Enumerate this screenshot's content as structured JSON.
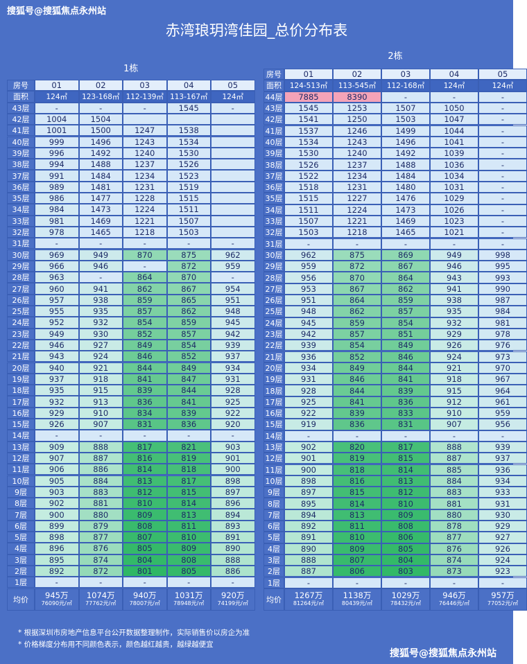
{
  "watermark_top": "搜狐号@搜狐焦点永州站",
  "title": "赤湾琅玥湾佳园_总价分布表",
  "buildings": [
    {
      "name": "1栋",
      "room_label": "房号",
      "units": [
        "01",
        "02",
        "03",
        "04",
        "05"
      ],
      "area_label": "面积",
      "areas": [
        "124㎡",
        "123-168㎡",
        "112-139㎡",
        "113-167㎡",
        "124㎡"
      ],
      "floors": [
        {
          "label": "43层",
          "prices": [
            "-",
            "-",
            "-",
            1545,
            "-"
          ]
        },
        {
          "label": "42层",
          "prices": [
            1004,
            1504,
            null,
            null,
            null
          ]
        },
        {
          "label": "41层",
          "prices": [
            1001,
            1500,
            1247,
            1538,
            null
          ]
        },
        {
          "label": "40层",
          "prices": [
            999,
            1496,
            1243,
            1534,
            null
          ]
        },
        {
          "label": "39层",
          "prices": [
            996,
            1492,
            1240,
            1530,
            null
          ]
        },
        {
          "label": "38层",
          "prices": [
            994,
            1488,
            1237,
            1526,
            null
          ]
        },
        {
          "label": "37层",
          "prices": [
            991,
            1484,
            1234,
            1523,
            null
          ]
        },
        {
          "label": "36层",
          "prices": [
            989,
            1481,
            1231,
            1519,
            null
          ]
        },
        {
          "label": "35层",
          "prices": [
            986,
            1477,
            1228,
            1515,
            null
          ]
        },
        {
          "label": "34层",
          "prices": [
            984,
            1473,
            1224,
            1511,
            null
          ]
        },
        {
          "label": "33层",
          "prices": [
            981,
            1469,
            1221,
            1507,
            null
          ]
        },
        {
          "label": "32层",
          "prices": [
            978,
            1465,
            1218,
            1503,
            null
          ]
        },
        {
          "label": "31层",
          "prices": [
            "-",
            "-",
            "-",
            "-",
            "-"
          ]
        },
        {
          "label": "30层",
          "prices": [
            969,
            949,
            870,
            875,
            962
          ]
        },
        {
          "label": "29层",
          "prices": [
            966,
            946,
            "-",
            872,
            959
          ]
        },
        {
          "label": "28层",
          "prices": [
            963,
            "-",
            864,
            870,
            "-"
          ]
        },
        {
          "label": "27层",
          "prices": [
            960,
            941,
            862,
            867,
            954
          ]
        },
        {
          "label": "26层",
          "prices": [
            957,
            938,
            859,
            865,
            951
          ]
        },
        {
          "label": "25层",
          "prices": [
            955,
            935,
            857,
            862,
            948
          ]
        },
        {
          "label": "24层",
          "prices": [
            952,
            932,
            854,
            859,
            945
          ]
        },
        {
          "label": "23层",
          "prices": [
            949,
            930,
            852,
            857,
            942
          ]
        },
        {
          "label": "22层",
          "prices": [
            946,
            927,
            849,
            854,
            939
          ]
        },
        {
          "label": "21层",
          "prices": [
            943,
            924,
            846,
            852,
            937
          ]
        },
        {
          "label": "20层",
          "prices": [
            940,
            921,
            844,
            849,
            934
          ]
        },
        {
          "label": "19层",
          "prices": [
            937,
            918,
            841,
            847,
            931
          ]
        },
        {
          "label": "18层",
          "prices": [
            935,
            915,
            839,
            844,
            928
          ]
        },
        {
          "label": "17层",
          "prices": [
            932,
            913,
            836,
            841,
            925
          ]
        },
        {
          "label": "16层",
          "prices": [
            929,
            910,
            834,
            839,
            922
          ]
        },
        {
          "label": "15层",
          "prices": [
            926,
            907,
            831,
            836,
            920
          ]
        },
        {
          "label": "14层",
          "prices": [
            "-",
            "-",
            "-",
            "-",
            "-"
          ]
        },
        {
          "label": "13层",
          "prices": [
            909,
            888,
            817,
            821,
            903
          ]
        },
        {
          "label": "12层",
          "prices": [
            907,
            887,
            816,
            819,
            901
          ]
        },
        {
          "label": "11层",
          "prices": [
            906,
            886,
            814,
            818,
            900
          ]
        },
        {
          "label": "10层",
          "prices": [
            905,
            884,
            813,
            817,
            898
          ]
        },
        {
          "label": "9层",
          "prices": [
            903,
            883,
            812,
            815,
            897
          ]
        },
        {
          "label": "8层",
          "prices": [
            902,
            881,
            810,
            814,
            896
          ]
        },
        {
          "label": "7层",
          "prices": [
            900,
            880,
            809,
            813,
            894
          ]
        },
        {
          "label": "6层",
          "prices": [
            899,
            879,
            808,
            811,
            893
          ]
        },
        {
          "label": "5层",
          "prices": [
            898,
            877,
            807,
            810,
            891
          ]
        },
        {
          "label": "4层",
          "prices": [
            896,
            876,
            805,
            809,
            890
          ]
        },
        {
          "label": "3层",
          "prices": [
            895,
            874,
            804,
            808,
            888
          ]
        },
        {
          "label": "2层",
          "prices": [
            892,
            872,
            801,
            805,
            886
          ]
        },
        {
          "label": "1层",
          "prices": [
            "-",
            "-",
            "-",
            "-",
            "-"
          ]
        }
      ],
      "average_label": "均价",
      "average_totals": [
        "945万",
        "1074万",
        "940万",
        "1031万",
        "920万"
      ],
      "average_unit_prices": [
        "76090元/㎡",
        "77762元/㎡",
        "78007元/㎡",
        "78948元/㎡",
        "74199元/㎡"
      ]
    },
    {
      "name": "2栋",
      "room_label": "房号",
      "units": [
        "01",
        "02",
        "03",
        "04",
        "05"
      ],
      "area_label": "面积",
      "areas": [
        "124-513㎡",
        "113-545㎡",
        "112-168㎡",
        "124㎡",
        "124㎡"
      ],
      "floors": [
        {
          "label": "44层",
          "prices": [
            7885,
            8390,
            "-",
            "-",
            "-"
          ]
        },
        {
          "label": "43层",
          "prices": [
            1545,
            1253,
            1507,
            1050,
            "-"
          ]
        },
        {
          "label": "42层",
          "prices": [
            1541,
            1250,
            1503,
            1047,
            "-"
          ]
        },
        {
          "label": "41层",
          "prices": [
            1537,
            1246,
            1499,
            1044,
            "-"
          ]
        },
        {
          "label": "40层",
          "prices": [
            1534,
            1243,
            1496,
            1041,
            "-"
          ]
        },
        {
          "label": "39层",
          "prices": [
            1530,
            1240,
            1492,
            1039,
            "-"
          ]
        },
        {
          "label": "38层",
          "prices": [
            1526,
            1237,
            1488,
            1036,
            "-"
          ]
        },
        {
          "label": "37层",
          "prices": [
            1522,
            1234,
            1484,
            1034,
            "-"
          ]
        },
        {
          "label": "36层",
          "prices": [
            1518,
            1231,
            1480,
            1031,
            "-"
          ]
        },
        {
          "label": "35层",
          "prices": [
            1515,
            1227,
            1476,
            1029,
            "-"
          ]
        },
        {
          "label": "34层",
          "prices": [
            1511,
            1224,
            1473,
            1026,
            "-"
          ]
        },
        {
          "label": "33层",
          "prices": [
            1507,
            1221,
            1469,
            1023,
            "-"
          ]
        },
        {
          "label": "32层",
          "prices": [
            1503,
            1218,
            1465,
            1021,
            "-"
          ]
        },
        {
          "label": "31层",
          "prices": [
            "-",
            "-",
            "-",
            "-",
            "-"
          ]
        },
        {
          "label": "30层",
          "prices": [
            962,
            875,
            869,
            949,
            998
          ]
        },
        {
          "label": "29层",
          "prices": [
            959,
            872,
            867,
            946,
            995
          ]
        },
        {
          "label": "28层",
          "prices": [
            956,
            870,
            864,
            943,
            993
          ]
        },
        {
          "label": "27层",
          "prices": [
            953,
            867,
            862,
            941,
            990
          ]
        },
        {
          "label": "26层",
          "prices": [
            951,
            864,
            859,
            938,
            987
          ]
        },
        {
          "label": "25层",
          "prices": [
            948,
            862,
            857,
            935,
            984
          ]
        },
        {
          "label": "24层",
          "prices": [
            945,
            859,
            854,
            932,
            981
          ]
        },
        {
          "label": "23层",
          "prices": [
            942,
            857,
            851,
            929,
            978
          ]
        },
        {
          "label": "22层",
          "prices": [
            939,
            854,
            849,
            926,
            976
          ]
        },
        {
          "label": "21层",
          "prices": [
            936,
            852,
            846,
            924,
            973
          ]
        },
        {
          "label": "20层",
          "prices": [
            934,
            849,
            844,
            921,
            970
          ]
        },
        {
          "label": "19层",
          "prices": [
            931,
            846,
            841,
            918,
            967
          ]
        },
        {
          "label": "18层",
          "prices": [
            928,
            844,
            839,
            915,
            964
          ]
        },
        {
          "label": "17层",
          "prices": [
            925,
            841,
            836,
            912,
            961
          ]
        },
        {
          "label": "16层",
          "prices": [
            922,
            839,
            833,
            910,
            959
          ]
        },
        {
          "label": "15层",
          "prices": [
            919,
            836,
            831,
            907,
            956
          ]
        },
        {
          "label": "14层",
          "prices": [
            "-",
            "-",
            "-",
            "-",
            "-"
          ]
        },
        {
          "label": "13层",
          "prices": [
            902,
            820,
            817,
            888,
            939
          ]
        },
        {
          "label": "12层",
          "prices": [
            901,
            819,
            815,
            887,
            937
          ]
        },
        {
          "label": "11层",
          "prices": [
            900,
            818,
            814,
            885,
            936
          ]
        },
        {
          "label": "10层",
          "prices": [
            898,
            816,
            813,
            884,
            934
          ]
        },
        {
          "label": "9层",
          "prices": [
            897,
            815,
            812,
            883,
            933
          ]
        },
        {
          "label": "8层",
          "prices": [
            895,
            814,
            810,
            881,
            931
          ]
        },
        {
          "label": "7层",
          "prices": [
            894,
            813,
            809,
            880,
            930
          ]
        },
        {
          "label": "6层",
          "prices": [
            892,
            811,
            808,
            878,
            929
          ]
        },
        {
          "label": "5层",
          "prices": [
            891,
            810,
            806,
            877,
            927
          ]
        },
        {
          "label": "4层",
          "prices": [
            890,
            809,
            805,
            876,
            926
          ]
        },
        {
          "label": "3层",
          "prices": [
            888,
            807,
            804,
            874,
            924
          ]
        },
        {
          "label": "2层",
          "prices": [
            887,
            806,
            803,
            873,
            923
          ]
        },
        {
          "label": "1层",
          "prices": [
            "-",
            "-",
            "-",
            "-",
            "-"
          ]
        }
      ],
      "average_label": "均价",
      "average_totals": [
        "1267万",
        "1138万",
        "1029万",
        "946万",
        "957万"
      ],
      "average_unit_prices": [
        "81264元/㎡",
        "80439元/㎡",
        "78432元/㎡",
        "76446元/㎡",
        "77052元/㎡"
      ]
    }
  ],
  "notes": [
    "* 根据深圳市房地产信息平台公开数据整理制作，实际销售价以房企为准",
    "* 价格梯度分布用不同颜色表示，颜色越红越贵，越绿越便宜"
  ],
  "watermark_bottom": "搜狐号@搜狐焦点永州站"
}
